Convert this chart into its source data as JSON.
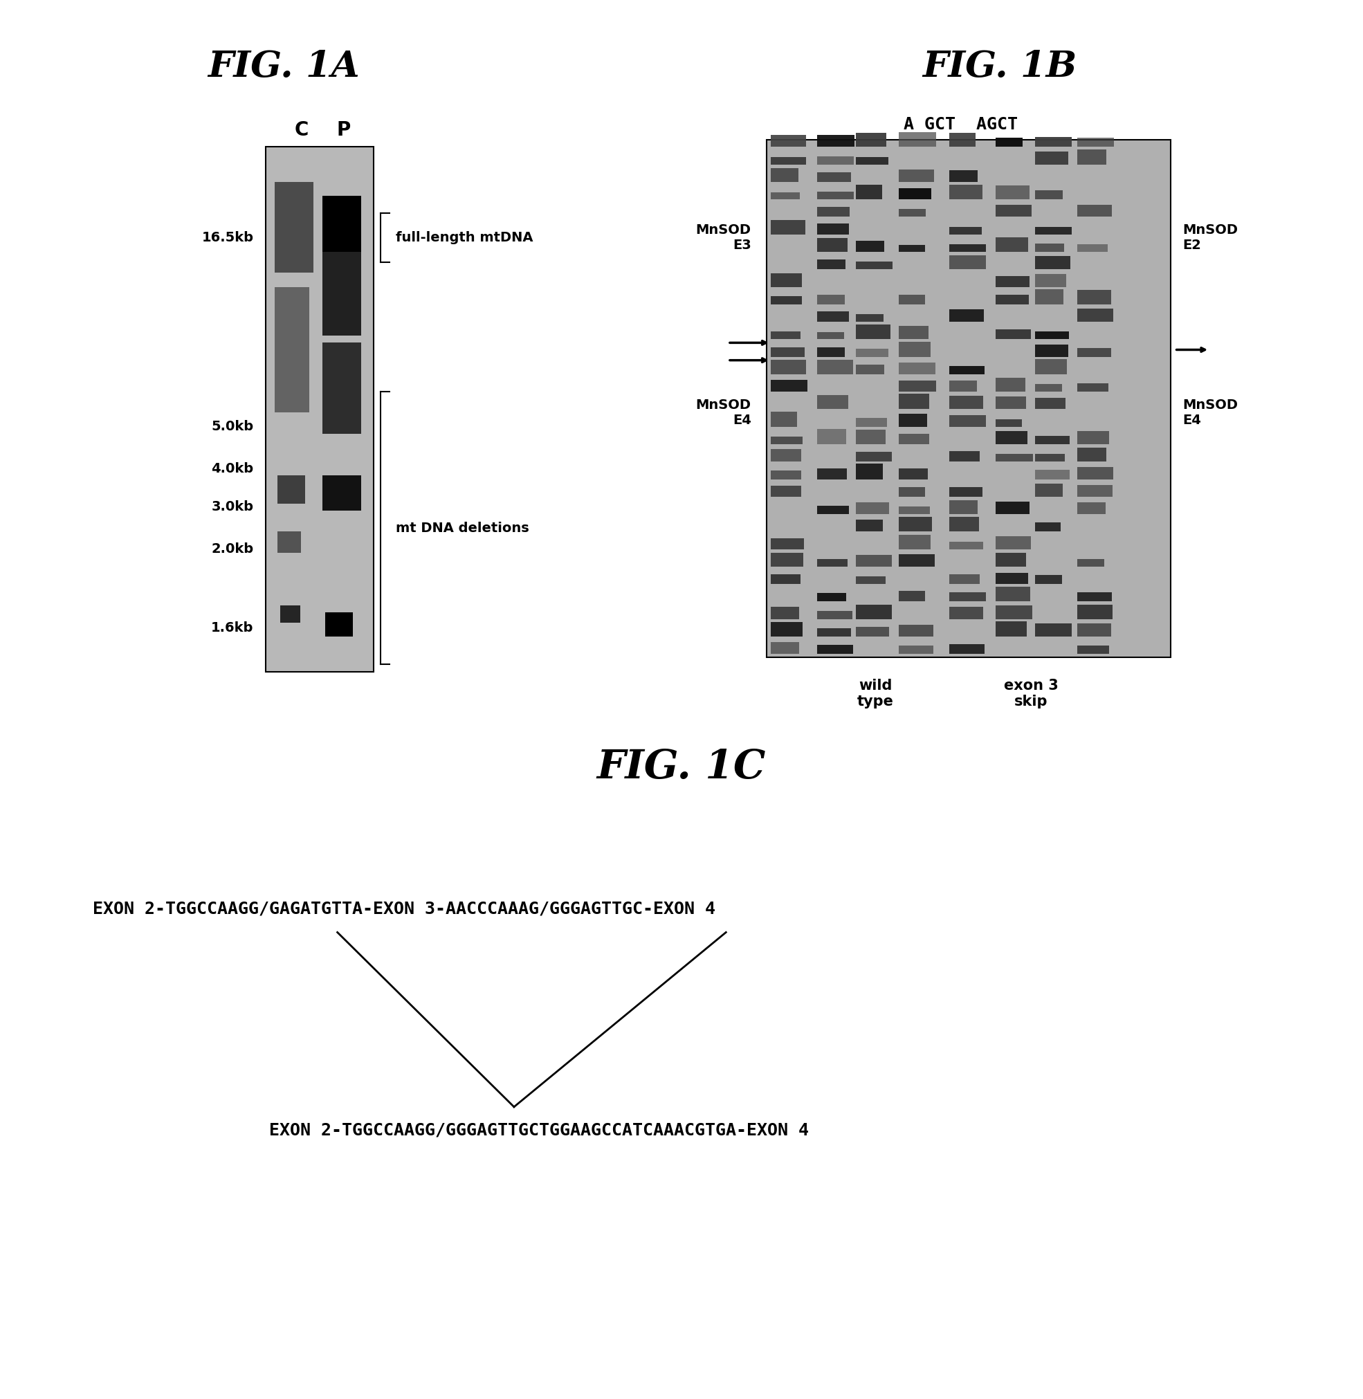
{
  "fig1a_title": "FIG. 1A",
  "fig1b_title": "FIG. 1B",
  "fig1c_title": "FIG. 1C",
  "fig1a_labels_left": [
    "16.5kb",
    "5.0kb",
    "4.0kb",
    "3.0kb",
    "2.0kb",
    "1.6kb"
  ],
  "fig1a_anno_full": "full-length mtDNA",
  "fig1a_anno_del": "mt DNA deletions",
  "fig1b_lane_header": "A GCT AGCT",
  "fig1b_left_label1": "MnSOD\nE3",
  "fig1b_left_label2": "MnSOD\nE4",
  "fig1b_right_label1": "MnSOD\nE2",
  "fig1b_right_label2": "MnSOD\nE4",
  "fig1b_bottom_left": "wild\ntype",
  "fig1b_bottom_right": "exon 3\nskip",
  "fig1c_line1": "EXON 2-TGGCCAAGG/GAGATGTTA-EXON 3-AACCCAAAG/GGGAGTTGC-EXON 4",
  "fig1c_line2": "EXON 2-TGGCCAAGG/GGGAGTTGCTGGAAGCCATCAAACGTGA-EXON 4",
  "bg_color": "#ffffff"
}
